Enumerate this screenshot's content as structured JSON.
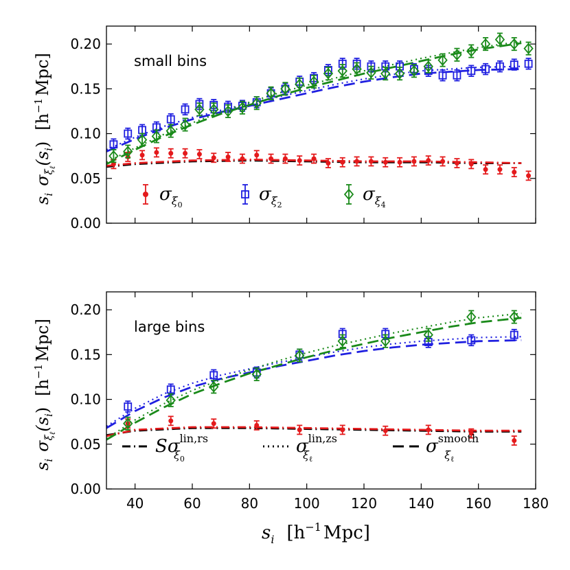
{
  "chart_data": [
    {
      "type": "scatter",
      "panel_label": "small bins",
      "ylabel": {
        "prefix": "s",
        "sub": "i",
        "sigma": "σ",
        "xi": "ξ",
        "ell": "ℓ",
        "arg": "(s",
        "arg_sub": "i",
        "arg_close": ")",
        "units": "[h",
        "units_exp": "−1",
        "units_tail": "Mpc]"
      },
      "xlim": [
        30,
        180
      ],
      "ylim": [
        0.0,
        0.22
      ],
      "yticks": [
        "0.00",
        "0.05",
        "0.10",
        "0.15",
        "0.20"
      ],
      "ytick_values": [
        0.0,
        0.05,
        0.1,
        0.15,
        0.2
      ],
      "legend": {
        "location": "lower-left",
        "entries": [
          {
            "name": "σ_ξ0",
            "sigma": "σ",
            "xi": "ξ",
            "sub": "0",
            "color": "#e41a1c",
            "marker": "circle"
          },
          {
            "name": "σ_ξ2",
            "sigma": "σ",
            "xi": "ξ",
            "sub": "2",
            "color": "#1f1fe0",
            "marker": "square"
          },
          {
            "name": "σ_ξ4",
            "sigma": "σ",
            "xi": "ξ",
            "sub": "4",
            "color": "#1a8a1a",
            "marker": "diamond"
          }
        ]
      },
      "series": [
        {
          "name": "sigma_xi0",
          "color": "#e41a1c",
          "marker": "circle",
          "x": [
            32.5,
            37.5,
            42.5,
            47.5,
            52.5,
            57.5,
            62.5,
            67.5,
            72.5,
            77.5,
            82.5,
            87.5,
            92.5,
            97.5,
            102.5,
            107.5,
            112.5,
            117.5,
            122.5,
            127.5,
            132.5,
            137.5,
            142.5,
            147.5,
            152.5,
            157.5,
            162.5,
            167.5,
            172.5,
            177.5
          ],
          "y": [
            0.066,
            0.074,
            0.076,
            0.079,
            0.078,
            0.078,
            0.077,
            0.073,
            0.074,
            0.072,
            0.076,
            0.072,
            0.072,
            0.07,
            0.072,
            0.067,
            0.068,
            0.069,
            0.069,
            0.068,
            0.068,
            0.069,
            0.07,
            0.069,
            0.067,
            0.066,
            0.06,
            0.06,
            0.057,
            0.053
          ],
          "err": 0.005
        },
        {
          "name": "sigma_xi2",
          "color": "#1f1fe0",
          "marker": "square",
          "x": [
            32.5,
            37.5,
            42.5,
            47.5,
            52.5,
            57.5,
            62.5,
            67.5,
            72.5,
            77.5,
            82.5,
            87.5,
            92.5,
            97.5,
            102.5,
            107.5,
            112.5,
            117.5,
            122.5,
            127.5,
            132.5,
            137.5,
            142.5,
            147.5,
            152.5,
            157.5,
            162.5,
            167.5,
            172.5,
            177.5
          ],
          "y": [
            0.088,
            0.1,
            0.104,
            0.107,
            0.116,
            0.127,
            0.133,
            0.132,
            0.13,
            0.131,
            0.135,
            0.145,
            0.15,
            0.158,
            0.162,
            0.171,
            0.178,
            0.178,
            0.175,
            0.175,
            0.175,
            0.172,
            0.17,
            0.165,
            0.165,
            0.17,
            0.172,
            0.175,
            0.177,
            0.178
          ],
          "err": 0.006
        },
        {
          "name": "sigma_xi4",
          "color": "#1a8a1a",
          "marker": "diamond",
          "x": [
            32.5,
            37.5,
            42.5,
            47.5,
            52.5,
            57.5,
            62.5,
            67.5,
            72.5,
            77.5,
            82.5,
            87.5,
            92.5,
            97.5,
            102.5,
            107.5,
            112.5,
            117.5,
            122.5,
            127.5,
            132.5,
            137.5,
            142.5,
            147.5,
            152.5,
            157.5,
            162.5,
            167.5,
            172.5,
            177.5
          ],
          "y": [
            0.075,
            0.08,
            0.093,
            0.097,
            0.103,
            0.11,
            0.127,
            0.127,
            0.125,
            0.129,
            0.134,
            0.145,
            0.15,
            0.155,
            0.158,
            0.167,
            0.17,
            0.172,
            0.168,
            0.167,
            0.167,
            0.17,
            0.175,
            0.182,
            0.188,
            0.192,
            0.2,
            0.205,
            0.2,
            0.195
          ],
          "err": 0.007
        }
      ],
      "curves": [
        {
          "name": "S_sigma_lin_rs_xi0",
          "color": "#000000",
          "style": "dashdot",
          "x": [
            30,
            40,
            60,
            80,
            100,
            120,
            140,
            160,
            175
          ],
          "y": [
            0.063,
            0.066,
            0.069,
            0.07,
            0.069,
            0.068,
            0.068,
            0.067,
            0.067
          ]
        },
        {
          "name": "sigma_smooth_xi0",
          "color": "#e41a1c",
          "style": "dashdot",
          "x": [
            30,
            40,
            60,
            80,
            100,
            120,
            140,
            160,
            175
          ],
          "y": [
            0.064,
            0.067,
            0.07,
            0.071,
            0.07,
            0.069,
            0.069,
            0.068,
            0.067
          ]
        },
        {
          "name": "sigma_smooth_xi2",
          "color": "#1f1fe0",
          "style": "dash",
          "x": [
            30,
            40,
            50,
            60,
            70,
            80,
            90,
            100,
            110,
            120,
            130,
            140,
            150,
            160,
            175
          ],
          "y": [
            0.08,
            0.094,
            0.106,
            0.116,
            0.124,
            0.131,
            0.138,
            0.145,
            0.152,
            0.158,
            0.163,
            0.167,
            0.169,
            0.171,
            0.172
          ]
        },
        {
          "name": "sigma_lin_zs_xi2",
          "color": "#1f1fe0",
          "style": "dot",
          "x": [
            30,
            40,
            50,
            60,
            70,
            80,
            90,
            100,
            110,
            120,
            130,
            140,
            150,
            160,
            175
          ],
          "y": [
            0.082,
            0.096,
            0.108,
            0.118,
            0.126,
            0.134,
            0.141,
            0.148,
            0.155,
            0.161,
            0.166,
            0.17,
            0.172,
            0.174,
            0.175
          ]
        },
        {
          "name": "sigma_smooth_xi4",
          "color": "#1a8a1a",
          "style": "dash",
          "x": [
            30,
            40,
            50,
            60,
            70,
            80,
            90,
            100,
            110,
            120,
            130,
            140,
            150,
            160,
            175
          ],
          "y": [
            0.066,
            0.082,
            0.097,
            0.11,
            0.122,
            0.132,
            0.142,
            0.151,
            0.159,
            0.167,
            0.174,
            0.181,
            0.188,
            0.194,
            0.201
          ]
        },
        {
          "name": "sigma_lin_zs_xi4",
          "color": "#1a8a1a",
          "style": "dot",
          "x": [
            30,
            40,
            50,
            60,
            70,
            80,
            90,
            100,
            110,
            120,
            130,
            140,
            150,
            160,
            175
          ],
          "y": [
            0.068,
            0.084,
            0.099,
            0.112,
            0.124,
            0.135,
            0.145,
            0.154,
            0.162,
            0.17,
            0.177,
            0.184,
            0.19,
            0.196,
            0.203
          ]
        }
      ]
    },
    {
      "type": "scatter",
      "panel_label": "large bins",
      "xlabel": {
        "main": "s",
        "sub": "i",
        "units": "[h",
        "units_exp": "−1",
        "units_tail": "Mpc]"
      },
      "ylabel": {
        "prefix": "s",
        "sub": "i",
        "sigma": "σ",
        "xi": "ξ",
        "ell": "ℓ",
        "arg": "(s",
        "arg_sub": "i",
        "arg_close": ")",
        "units": "[h",
        "units_exp": "−1",
        "units_tail": "Mpc]"
      },
      "xlim": [
        30,
        180
      ],
      "ylim": [
        0.0,
        0.22
      ],
      "xticks": [
        "40",
        "60",
        "80",
        "100",
        "120",
        "140",
        "160",
        "180"
      ],
      "xtick_values": [
        40,
        60,
        80,
        100,
        120,
        140,
        160,
        180
      ],
      "yticks": [
        "0.00",
        "0.05",
        "0.10",
        "0.15",
        "0.20"
      ],
      "ytick_values": [
        0.0,
        0.05,
        0.1,
        0.15,
        0.2
      ],
      "legend": {
        "location": "lower",
        "entries": [
          {
            "name": "S σ^lin,rs_ξ0",
            "prefix": "S",
            "sigma": "σ",
            "sup": "lin,rs",
            "xi": "ξ",
            "sub": "0",
            "color": "#000000",
            "style": "dashdot"
          },
          {
            "name": "σ^lin,zs_ξℓ",
            "prefix": "",
            "sigma": "σ",
            "sup": "lin,zs",
            "xi": "ξ",
            "sub": "ℓ",
            "color": "#000000",
            "style": "dot"
          },
          {
            "name": "σ^smooth_ξℓ",
            "prefix": "",
            "sigma": "σ",
            "sup": "smooth",
            "xi": "ξ",
            "sub": "ℓ",
            "color": "#000000",
            "style": "dash"
          }
        ]
      },
      "series": [
        {
          "name": "sigma_xi0",
          "color": "#e41a1c",
          "marker": "circle",
          "x": [
            37.5,
            52.5,
            67.5,
            82.5,
            97.5,
            112.5,
            127.5,
            142.5,
            157.5,
            172.5
          ],
          "y": [
            0.073,
            0.076,
            0.073,
            0.071,
            0.066,
            0.066,
            0.065,
            0.066,
            0.062,
            0.054
          ],
          "err": 0.005
        },
        {
          "name": "sigma_xi2",
          "color": "#1f1fe0",
          "marker": "square",
          "x": [
            37.5,
            52.5,
            67.5,
            82.5,
            97.5,
            112.5,
            127.5,
            142.5,
            157.5,
            172.5
          ],
          "y": [
            0.092,
            0.111,
            0.127,
            0.13,
            0.15,
            0.173,
            0.173,
            0.164,
            0.166,
            0.172
          ],
          "err": 0.006
        },
        {
          "name": "sigma_xi4",
          "color": "#1a8a1a",
          "marker": "diamond",
          "x": [
            37.5,
            52.5,
            67.5,
            82.5,
            97.5,
            112.5,
            127.5,
            142.5,
            157.5,
            172.5
          ],
          "y": [
            0.073,
            0.099,
            0.114,
            0.128,
            0.149,
            0.165,
            0.165,
            0.172,
            0.192,
            0.192
          ],
          "err": 0.007
        }
      ],
      "curves": [
        {
          "name": "S_sigma_lin_rs_xi0",
          "color": "#000000",
          "style": "dashdot",
          "x": [
            30,
            40,
            60,
            80,
            100,
            120,
            140,
            160,
            175
          ],
          "y": [
            0.06,
            0.065,
            0.068,
            0.068,
            0.067,
            0.066,
            0.065,
            0.064,
            0.064
          ]
        },
        {
          "name": "sigma_smooth_xi0",
          "color": "#e41a1c",
          "style": "dashdot",
          "x": [
            30,
            40,
            60,
            80,
            100,
            120,
            140,
            160,
            175
          ],
          "y": [
            0.059,
            0.066,
            0.069,
            0.069,
            0.068,
            0.067,
            0.066,
            0.065,
            0.065
          ]
        },
        {
          "name": "sigma_lin_zs_xi2",
          "color": "#1f1fe0",
          "style": "dot",
          "x": [
            30,
            40,
            50,
            60,
            70,
            80,
            90,
            100,
            110,
            120,
            130,
            140,
            150,
            160,
            175
          ],
          "y": [
            0.07,
            0.09,
            0.106,
            0.118,
            0.127,
            0.134,
            0.141,
            0.147,
            0.153,
            0.158,
            0.162,
            0.165,
            0.167,
            0.169,
            0.17
          ]
        },
        {
          "name": "sigma_smooth_xi2",
          "color": "#1f1fe0",
          "style": "dash",
          "x": [
            30,
            40,
            50,
            60,
            70,
            80,
            90,
            100,
            110,
            120,
            130,
            140,
            150,
            160,
            175
          ],
          "y": [
            0.068,
            0.087,
            0.102,
            0.114,
            0.123,
            0.13,
            0.137,
            0.143,
            0.149,
            0.154,
            0.158,
            0.161,
            0.163,
            0.165,
            0.166
          ]
        },
        {
          "name": "sigma_lin_zs_xi4",
          "color": "#1a8a1a",
          "style": "dot",
          "x": [
            30,
            40,
            50,
            60,
            70,
            80,
            90,
            100,
            110,
            120,
            130,
            140,
            150,
            160,
            175
          ],
          "y": [
            0.056,
            0.077,
            0.095,
            0.11,
            0.122,
            0.133,
            0.143,
            0.152,
            0.16,
            0.167,
            0.174,
            0.18,
            0.186,
            0.191,
            0.196
          ]
        },
        {
          "name": "sigma_smooth_xi4",
          "color": "#1a8a1a",
          "style": "dash",
          "x": [
            30,
            40,
            50,
            60,
            70,
            80,
            90,
            100,
            110,
            120,
            130,
            140,
            150,
            160,
            175
          ],
          "y": [
            0.055,
            0.074,
            0.091,
            0.106,
            0.118,
            0.129,
            0.138,
            0.147,
            0.155,
            0.162,
            0.169,
            0.175,
            0.181,
            0.186,
            0.191
          ]
        }
      ]
    }
  ]
}
